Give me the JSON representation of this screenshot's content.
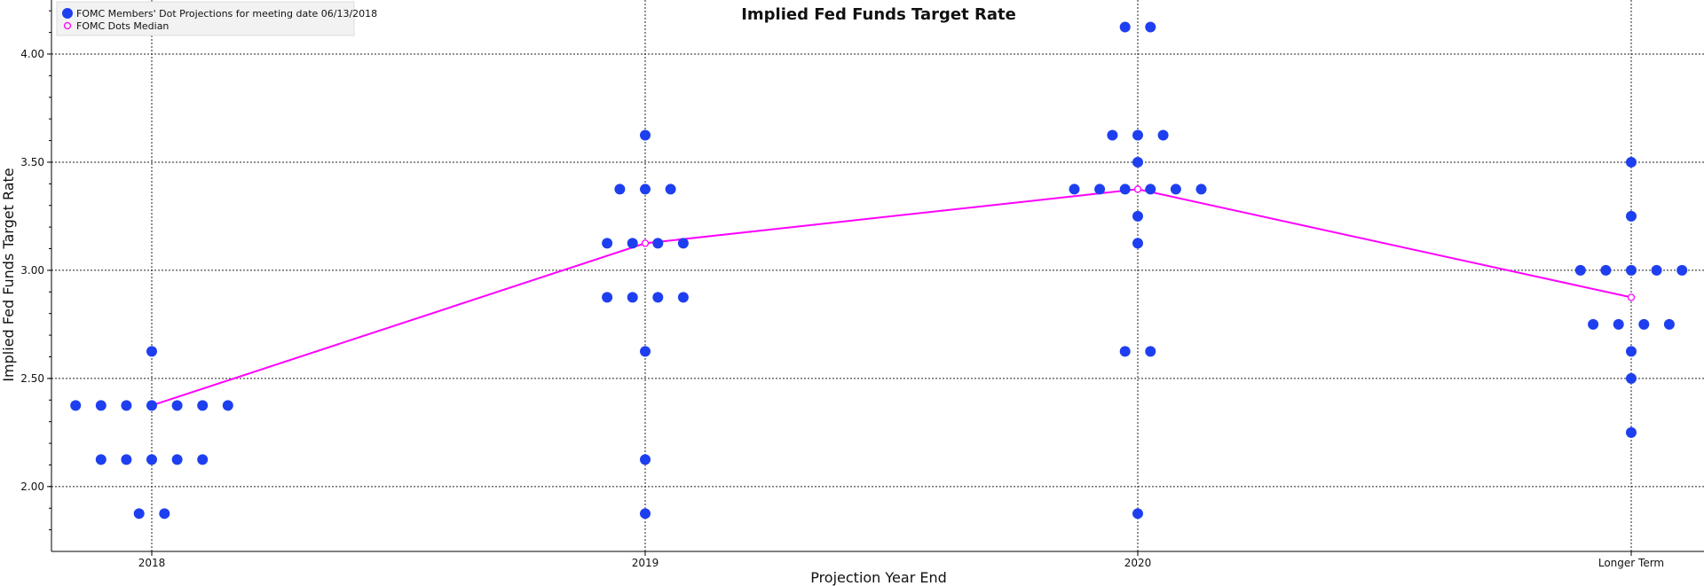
{
  "chart_data": {
    "type": "scatter",
    "title": "Implied Fed Funds Target Rate",
    "xlabel": "Projection Year End",
    "ylabel": "Implied Fed Funds Target Rate",
    "categories": [
      "2018",
      "2019",
      "2020",
      "Longer Term"
    ],
    "yticks": [
      "2.00",
      "2.50",
      "3.00",
      "3.50",
      "4.00"
    ],
    "ylim": [
      1.7,
      4.25
    ],
    "grid": true,
    "legend_position": "top-left",
    "series": [
      {
        "name": "FOMC Members' Dot Projections for meeting date 06/13/2018",
        "kind": "dots",
        "color": "#1e3ff0",
        "groups": [
          {
            "category": "2018",
            "counts": {
              "2.625": 1,
              "2.375": 7,
              "2.125": 5,
              "1.875": 2
            }
          },
          {
            "category": "2019",
            "counts": {
              "3.625": 1,
              "3.375": 3,
              "3.125": 4,
              "2.875": 4,
              "2.625": 1,
              "2.125": 1,
              "1.875": 1
            }
          },
          {
            "category": "2020",
            "counts": {
              "4.125": 2,
              "3.625": 3,
              "3.5": 1,
              "3.375": 6,
              "3.25": 1,
              "3.125": 1,
              "2.625": 2,
              "1.875": 1
            }
          },
          {
            "category": "Longer Term",
            "counts": {
              "3.5": 1,
              "3.25": 1,
              "3.0": 5,
              "2.75": 4,
              "2.625": 1,
              "2.5": 1,
              "2.25": 1
            }
          }
        ]
      },
      {
        "name": "FOMC Dots Median",
        "kind": "line",
        "color": "#ff00ff",
        "values": [
          2.375,
          3.125,
          3.375,
          2.875
        ]
      }
    ]
  }
}
